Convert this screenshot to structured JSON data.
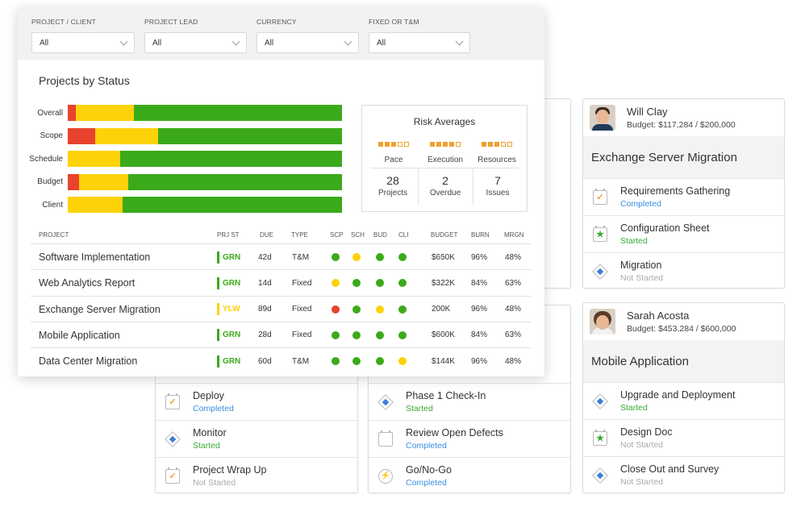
{
  "filters": [
    {
      "label": "PROJECT / CLIENT",
      "value": "All"
    },
    {
      "label": "PROJECT LEAD",
      "value": "All"
    },
    {
      "label": "CURRENCY",
      "value": "All"
    },
    {
      "label": "FIXED OR T&M",
      "value": "All"
    }
  ],
  "chart_title": "Projects by Status",
  "chart_data": {
    "type": "bar",
    "stacked": true,
    "orientation": "horizontal",
    "categories": [
      "Overall",
      "Scope",
      "Schedule",
      "Budget",
      "Client"
    ],
    "series": [
      {
        "color": "#e8432e",
        "values": [
          3,
          10,
          0,
          4,
          0
        ]
      },
      {
        "color": "#fdd208",
        "values": [
          21,
          23,
          19,
          18,
          20
        ]
      },
      {
        "color": "#3aaa1b",
        "values": [
          76,
          67,
          81,
          78,
          80
        ]
      }
    ],
    "xlim": [
      0,
      100
    ]
  },
  "risk": {
    "title": "Risk Averages",
    "gauges": [
      {
        "label": "Pace",
        "level": 3,
        "max": 5
      },
      {
        "label": "Execution",
        "level": 4,
        "max": 5
      },
      {
        "label": "Resources",
        "level": 3,
        "max": 5
      }
    ],
    "stats": [
      {
        "value": "28",
        "label": "Projects"
      },
      {
        "value": "2",
        "label": "Overdue"
      },
      {
        "value": "7",
        "label": "Issues"
      }
    ]
  },
  "table": {
    "headers": [
      "PROJECT",
      "PRJ ST",
      "DUE",
      "TYPE",
      "SCP",
      "SCH",
      "BUD",
      "CLI",
      "BUDGET",
      "BURN",
      "MRGN"
    ],
    "rows": [
      {
        "name": "Software Implementation",
        "status": "GRN",
        "status_color": "#3aaa1b",
        "due": "42d",
        "type": "T&M",
        "scp": "#3aaa1b",
        "sch": "#fdd208",
        "bud": "#3aaa1b",
        "cli": "#3aaa1b",
        "budget": "$650K",
        "burn": "96%",
        "mrgn": "48%"
      },
      {
        "name": "Web Analytics Report",
        "status": "GRN",
        "status_color": "#3aaa1b",
        "due": "14d",
        "type": "Fixed",
        "scp": "#fdd208",
        "sch": "#3aaa1b",
        "bud": "#3aaa1b",
        "cli": "#3aaa1b",
        "budget": "$322K",
        "burn": "84%",
        "mrgn": "63%"
      },
      {
        "name": "Exchange Server Migration",
        "status": "YLW",
        "status_color": "#fdd208",
        "due": "89d",
        "type": "Fixed",
        "scp": "#e8432e",
        "sch": "#3aaa1b",
        "bud": "#fdd208",
        "cli": "#3aaa1b",
        "budget": "200K",
        "burn": "96%",
        "mrgn": "48%"
      },
      {
        "name": "Mobile Application",
        "status": "GRN",
        "status_color": "#3aaa1b",
        "due": "28d",
        "type": "Fixed",
        "scp": "#3aaa1b",
        "sch": "#3aaa1b",
        "bud": "#3aaa1b",
        "cli": "#3aaa1b",
        "budget": "$600K",
        "burn": "84%",
        "mrgn": "63%"
      },
      {
        "name": "Data Center Migration",
        "status": "GRN",
        "status_color": "#3aaa1b",
        "due": "60d",
        "type": "T&M",
        "scp": "#3aaa1b",
        "sch": "#3aaa1b",
        "bud": "#3aaa1b",
        "cli": "#fdd208",
        "budget": "$144K",
        "burn": "96%",
        "mrgn": "48%"
      }
    ]
  },
  "cards": {
    "will": {
      "name": "Will Clay",
      "budget": "Budget: $117,284 / $200,000",
      "project": "Exchange Server Migration",
      "tasks": [
        {
          "name": "Requirements Gathering",
          "status": "Completed",
          "icon": "calendar-check-icon"
        },
        {
          "name": "Configuration Sheet",
          "status": "Started",
          "icon": "star-icon"
        },
        {
          "name": "Migration",
          "status": "Not Started",
          "icon": "milestone-diamond-icon"
        }
      ]
    },
    "sarah": {
      "name": "Sarah Acosta",
      "budget": "Budget: $453,284 / $600,000",
      "project": "Mobile Application",
      "tasks": [
        {
          "name": "Upgrade and Deployment",
          "status": "Started",
          "icon": "milestone-diamond-icon"
        },
        {
          "name": "Design Doc",
          "status": "Not Started",
          "icon": "star-icon"
        },
        {
          "name": "Close Out and Survey",
          "status": "Not Started",
          "icon": "milestone-diamond-icon"
        }
      ]
    },
    "col1": [
      {
        "name": "Deploy",
        "status": "Completed",
        "icon": "calendar-check-icon"
      },
      {
        "name": "Monitor",
        "status": "Started",
        "icon": "milestone-diamond-icon"
      },
      {
        "name": "Project Wrap Up",
        "status": "Not Started",
        "icon": "calendar-check-icon"
      }
    ],
    "col2": [
      {
        "name": "Phase 1 Check-In",
        "status": "Started",
        "icon": "milestone-diamond-icon"
      },
      {
        "name": "Review Open Defects",
        "status": "Completed",
        "icon": "calendar-icon"
      },
      {
        "name": "Go/No-Go",
        "status": "Completed",
        "icon": "lightning-icon"
      }
    ]
  }
}
